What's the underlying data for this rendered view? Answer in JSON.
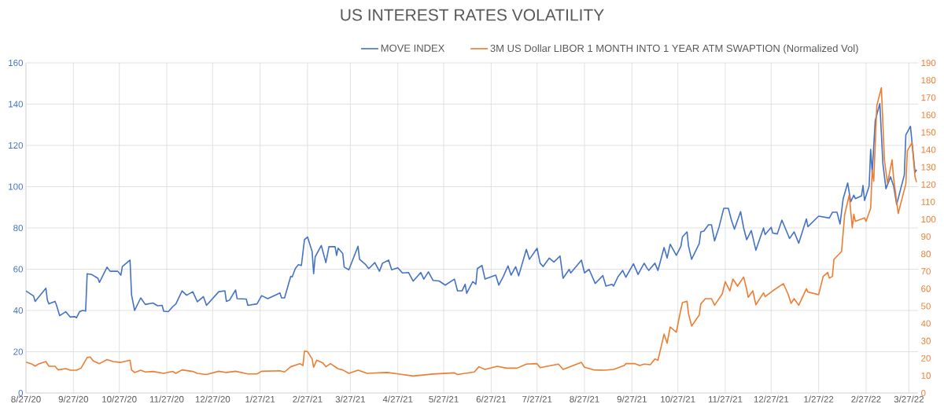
{
  "chart_data": {
    "type": "line",
    "title": "US INTEREST RATES VOLATILITY",
    "xlim": [
      "2020-08-27",
      "2022-04-02"
    ],
    "xticks": [
      {
        "value": "2020-08-27",
        "label": "8/27/20"
      },
      {
        "value": "2020-09-27",
        "label": "9/27/20"
      },
      {
        "value": "2020-10-27",
        "label": "10/27/20"
      },
      {
        "value": "2020-11-27",
        "label": "11/27/20"
      },
      {
        "value": "2020-12-27",
        "label": "12/27/20"
      },
      {
        "value": "2021-01-27",
        "label": "1/27/21"
      },
      {
        "value": "2021-02-27",
        "label": "2/27/21"
      },
      {
        "value": "2021-03-27",
        "label": "3/27/21"
      },
      {
        "value": "2021-04-27",
        "label": "4/27/21"
      },
      {
        "value": "2021-05-27",
        "label": "5/27/21"
      },
      {
        "value": "2021-06-27",
        "label": "6/27/21"
      },
      {
        "value": "2021-07-27",
        "label": "7/27/21"
      },
      {
        "value": "2021-08-27",
        "label": "8/27/21"
      },
      {
        "value": "2021-09-27",
        "label": "9/27/21"
      },
      {
        "value": "2021-10-27",
        "label": "10/27/21"
      },
      {
        "value": "2021-11-27",
        "label": "11/27/21"
      },
      {
        "value": "2021-12-27",
        "label": "12/27/21"
      },
      {
        "value": "2022-01-27",
        "label": "1/27/22"
      },
      {
        "value": "2022-02-27",
        "label": "2/27/22"
      },
      {
        "value": "2022-03-27",
        "label": "3/27/22"
      }
    ],
    "ylim": [
      0,
      160
    ],
    "yticks": [
      0,
      20,
      40,
      60,
      80,
      100,
      120,
      140,
      160
    ],
    "y2lim": [
      0,
      190
    ],
    "y2ticks": [
      0,
      10,
      20,
      30,
      40,
      50,
      60,
      70,
      80,
      90,
      100,
      110,
      120,
      130,
      140,
      150,
      160,
      170,
      180,
      190
    ],
    "grid": true,
    "legend": "top",
    "series": [
      {
        "name": "MOVE INDEX",
        "color": "#4472c4",
        "x": [
          "2020-08-27",
          "2020-09-01",
          "2020-09-02",
          "2020-09-09",
          "2020-09-10",
          "2020-09-11",
          "2020-09-15",
          "2020-09-16",
          "2020-09-18",
          "2020-09-22",
          "2020-09-25",
          "2020-09-28",
          "2020-09-29",
          "2020-10-01",
          "2020-10-03",
          "2020-10-05",
          "2020-10-06",
          "2020-10-09",
          "2020-10-13",
          "2020-10-14",
          "2020-10-19",
          "2020-10-21",
          "2020-10-26",
          "2020-10-28",
          "2020-10-29",
          "2020-11-03",
          "2020-11-04",
          "2020-11-06",
          "2020-11-10",
          "2020-11-13",
          "2020-11-18",
          "2020-11-21",
          "2020-11-24",
          "2020-11-25",
          "2020-11-28",
          "2020-12-01",
          "2020-12-03",
          "2020-12-07",
          "2020-12-10",
          "2020-12-14",
          "2020-12-17",
          "2020-12-21",
          "2020-12-23",
          "2020-12-31",
          "2021-01-04",
          "2021-01-05",
          "2021-01-07",
          "2021-01-11",
          "2021-01-12",
          "2021-01-18",
          "2021-01-19",
          "2021-01-25",
          "2021-01-28",
          "2021-02-01",
          "2021-02-09",
          "2021-02-10",
          "2021-02-12",
          "2021-02-16",
          "2021-02-17",
          "2021-02-19",
          "2021-02-21",
          "2021-02-23",
          "2021-02-25",
          "2021-02-27",
          "2021-03-02",
          "2021-03-03",
          "2021-03-04",
          "2021-03-08",
          "2021-03-11",
          "2021-03-13",
          "2021-03-17",
          "2021-03-18",
          "2021-03-19",
          "2021-03-22",
          "2021-03-23",
          "2021-03-26",
          "2021-04-01",
          "2021-04-02",
          "2021-04-06",
          "2021-04-08",
          "2021-04-12",
          "2021-04-15",
          "2021-04-17",
          "2021-04-21",
          "2021-04-23",
          "2021-04-27",
          "2021-04-30",
          "2021-05-04",
          "2021-05-07",
          "2021-05-12",
          "2021-05-14",
          "2021-05-17",
          "2021-05-20",
          "2021-05-24",
          "2021-05-28",
          "2021-06-03",
          "2021-06-05",
          "2021-06-08",
          "2021-06-10",
          "2021-06-11",
          "2021-06-15",
          "2021-06-17",
          "2021-06-18",
          "2021-06-21",
          "2021-06-23",
          "2021-06-30",
          "2021-07-02",
          "2021-07-05",
          "2021-07-08",
          "2021-07-10",
          "2021-07-13",
          "2021-07-15",
          "2021-07-20",
          "2021-07-22",
          "2021-07-27",
          "2021-07-29",
          "2021-07-31",
          "2021-08-04",
          "2021-08-07",
          "2021-08-11",
          "2021-08-13",
          "2021-08-17",
          "2021-08-18",
          "2021-08-25",
          "2021-08-27",
          "2021-08-30",
          "2021-09-03",
          "2021-09-08",
          "2021-09-10",
          "2021-09-14",
          "2021-09-15",
          "2021-09-18",
          "2021-09-21",
          "2021-09-23",
          "2021-09-28",
          "2021-10-01",
          "2021-10-05",
          "2021-10-07",
          "2021-10-08",
          "2021-10-12",
          "2021-10-14",
          "2021-10-18",
          "2021-10-20",
          "2021-10-22",
          "2021-10-26",
          "2021-10-29",
          "2021-10-30",
          "2021-11-02",
          "2021-11-03",
          "2021-11-05",
          "2021-11-10",
          "2021-11-11",
          "2021-11-13",
          "2021-11-16",
          "2021-11-18",
          "2021-11-20",
          "2021-11-23",
          "2021-11-26",
          "2021-11-29",
          "2021-12-01",
          "2021-12-03",
          "2021-12-07",
          "2021-12-09",
          "2021-12-11",
          "2021-12-14",
          "2021-12-17",
          "2021-12-22",
          "2021-12-23",
          "2021-12-27",
          "2021-12-28",
          "2021-12-31",
          "2022-01-03",
          "2022-01-06",
          "2022-01-08",
          "2022-01-11",
          "2022-01-14",
          "2022-01-19",
          "2022-01-20",
          "2022-01-27",
          "2022-02-03",
          "2022-02-05",
          "2022-02-08",
          "2022-02-10",
          "2022-02-12",
          "2022-02-15",
          "2022-02-17",
          "2022-02-19",
          "2022-02-20",
          "2022-02-24",
          "2022-02-25",
          "2022-02-26",
          "2022-03-01",
          "2022-03-02",
          "2022-03-03",
          "2022-03-05",
          "2022-03-08",
          "2022-03-10",
          "2022-03-12",
          "2022-03-15",
          "2022-03-17",
          "2022-03-19",
          "2022-03-24",
          "2022-03-25",
          "2022-03-28",
          "2022-03-31",
          "2022-04-01"
        ],
        "values": [
          49.5,
          47,
          44.4,
          50.8,
          45,
          43.2,
          44.4,
          42.5,
          37.5,
          39.4,
          36.8,
          37,
          36.4,
          39.4,
          40,
          39.7,
          57.8,
          57.4,
          55.6,
          53.6,
          61,
          59,
          59,
          57.1,
          61.3,
          64.4,
          47.6,
          40,
          46.1,
          42.9,
          43.6,
          42.3,
          42.5,
          39.6,
          39.4,
          41.9,
          43.2,
          49.5,
          47.4,
          49.1,
          44.2,
          46.7,
          42.5,
          49.1,
          49.5,
          44.4,
          45,
          49.9,
          45.7,
          45.5,
          42.5,
          43.2,
          47.2,
          45.7,
          48.5,
          46.1,
          46.1,
          56.5,
          56.3,
          60.3,
          62.2,
          61.8,
          74.3,
          75.6,
          68.6,
          57.8,
          66,
          71.5,
          63.2,
          70.9,
          70.9,
          66.7,
          70.2,
          67.6,
          61,
          59.7,
          71.1,
          64.8,
          62.2,
          60.3,
          63.2,
          59,
          62.9,
          64.4,
          59.7,
          60.7,
          58.2,
          58.4,
          54.2,
          58.4,
          55.2,
          58.7,
          54.6,
          54.3,
          52.3,
          55.2,
          49.5,
          49.5,
          52.7,
          48.3,
          54,
          52.7,
          60.3,
          61.8,
          55.2,
          57.1,
          52.3,
          56.5,
          61.6,
          57.1,
          61.2,
          56.8,
          69.6,
          64.8,
          70.1,
          62.9,
          61.3,
          65.4,
          63.5,
          66.4,
          55.6,
          59.9,
          58.2,
          64.4,
          58.2,
          59.9,
          53.1,
          56.9,
          51.8,
          52.7,
          51.8,
          56.5,
          59.4,
          56.1,
          62.6,
          57.5,
          62.9,
          60.3,
          59.4,
          62.9,
          59.4,
          70.5,
          65.4,
          72.1,
          66.7,
          71.1,
          75.6,
          78.1,
          71.1,
          64.8,
          72.4,
          78.1,
          78.5,
          81.5,
          81.5,
          73.7,
          80.6,
          89.5,
          89.5,
          83.8,
          79.4,
          87.9,
          80,
          74.3,
          78.7,
          69.2,
          80,
          76.8,
          80.3,
          77.5,
          77.1,
          83.8,
          78.5,
          74.9,
          78.1,
          72.6,
          84.4,
          80.6,
          85.7,
          84.8,
          87.6,
          87.6,
          81.9,
          94,
          101.8,
          92.7,
          95.9,
          94.2,
          95.5,
          100.6,
          93.3,
          100.3,
          118.1,
          106.7,
          132.1,
          140.3,
          111.1,
          99,
          104.8,
          100.3,
          91.4,
          105.7,
          125.1,
          129.3,
          106.9,
          108.2
        ]
      },
      {
        "name": "3M US Dollar LIBOR 1 MONTH INTO 1 YEAR ATM SWAPTION (Normalized Vol)",
        "color": "#ed7d31",
        "axis": "y2",
        "x": [
          "2020-08-27",
          "2020-08-31",
          "2020-09-02",
          "2020-09-04",
          "2020-09-09",
          "2020-09-11",
          "2020-09-15",
          "2020-09-17",
          "2020-09-22",
          "2020-09-25",
          "2020-09-29",
          "2020-10-02",
          "2020-10-06",
          "2020-10-08",
          "2020-10-10",
          "2020-10-14",
          "2020-10-19",
          "2020-10-23",
          "2020-10-28",
          "2020-11-03",
          "2020-11-04",
          "2020-11-06",
          "2020-11-10",
          "2020-11-13",
          "2020-11-18",
          "2020-11-25",
          "2020-12-01",
          "2020-12-03",
          "2020-12-07",
          "2020-12-14",
          "2020-12-17",
          "2020-12-23",
          "2020-12-31",
          "2021-01-05",
          "2021-01-11",
          "2021-01-19",
          "2021-01-25",
          "2021-01-28",
          "2021-02-09",
          "2021-02-12",
          "2021-02-16",
          "2021-02-20",
          "2021-02-22",
          "2021-02-24",
          "2021-02-25",
          "2021-02-27",
          "2021-03-02",
          "2021-03-03",
          "2021-03-05",
          "2021-03-09",
          "2021-03-11",
          "2021-03-14",
          "2021-03-19",
          "2021-03-22",
          "2021-03-26",
          "2021-04-01",
          "2021-04-07",
          "2021-04-20",
          "2021-05-07",
          "2021-05-20",
          "2021-06-03",
          "2021-06-05",
          "2021-06-16",
          "2021-06-19",
          "2021-06-23",
          "2021-07-01",
          "2021-07-07",
          "2021-07-14",
          "2021-07-20",
          "2021-07-27",
          "2021-07-29",
          "2021-08-10",
          "2021-08-13",
          "2021-08-25",
          "2021-08-27",
          "2021-09-02",
          "2021-09-09",
          "2021-09-15",
          "2021-09-22",
          "2021-09-23",
          "2021-09-29",
          "2021-10-02",
          "2021-10-05",
          "2021-10-09",
          "2021-10-12",
          "2021-10-14",
          "2021-10-18",
          "2021-10-20",
          "2021-10-22",
          "2021-10-26",
          "2021-10-28",
          "2021-10-30",
          "2021-11-02",
          "2021-11-03",
          "2021-11-05",
          "2021-11-10",
          "2021-11-11",
          "2021-11-14",
          "2021-11-18",
          "2021-11-20",
          "2021-11-25",
          "2021-11-27",
          "2021-11-30",
          "2021-12-02",
          "2021-12-05",
          "2021-12-09",
          "2021-12-11",
          "2021-12-12",
          "2021-12-15",
          "2021-12-17",
          "2021-12-22",
          "2021-12-23",
          "2021-12-28",
          "2022-01-04",
          "2022-01-07",
          "2022-01-09",
          "2022-01-11",
          "2022-01-14",
          "2022-01-19",
          "2022-01-20",
          "2022-01-27",
          "2022-01-30",
          "2022-02-02",
          "2022-02-03",
          "2022-02-05",
          "2022-02-06",
          "2022-02-11",
          "2022-02-13",
          "2022-02-16",
          "2022-02-18",
          "2022-02-19",
          "2022-02-20",
          "2022-02-26",
          "2022-02-27",
          "2022-03-02",
          "2022-03-03",
          "2022-03-04",
          "2022-03-06",
          "2022-03-09",
          "2022-03-11",
          "2022-03-13",
          "2022-03-16",
          "2022-03-17",
          "2022-03-20",
          "2022-03-25",
          "2022-03-26",
          "2022-03-29",
          "2022-03-31",
          "2022-04-01"
        ],
        "values": [
          17.8,
          16.6,
          15.5,
          16.6,
          18.1,
          15.4,
          15.4,
          13.3,
          14,
          13.1,
          13.1,
          14.3,
          20.4,
          20.7,
          18.4,
          16.9,
          19.2,
          18.1,
          17.6,
          18.9,
          13.3,
          11.8,
          13.1,
          12.1,
          12.4,
          11.3,
          12.4,
          11.3,
          13.3,
          12.4,
          11.3,
          10.6,
          12.5,
          11.8,
          12.5,
          11,
          11,
          12.5,
          12.8,
          12.1,
          15.1,
          16.3,
          16.9,
          15.8,
          24.1,
          23.8,
          19.6,
          14.8,
          18.9,
          17.3,
          15.1,
          16.9,
          13.9,
          13.3,
          11.3,
          13.1,
          11.3,
          11.8,
          9.8,
          10.9,
          11.6,
          10.6,
          12.1,
          15.1,
          13.6,
          15.4,
          14.3,
          14.3,
          16.6,
          16.9,
          14.6,
          16.6,
          13.6,
          17.6,
          14.8,
          13.3,
          13.1,
          13.6,
          15.8,
          16.9,
          16.9,
          15.8,
          16.6,
          16.3,
          19.6,
          18.9,
          33.9,
          28.7,
          38,
          35,
          44,
          52,
          52.8,
          45.6,
          38.5,
          44.9,
          51.3,
          54.3,
          54.3,
          50.5,
          57,
          64.1,
          58.8,
          65.6,
          61.5,
          66.8,
          59.6,
          55.1,
          58.8,
          50.8,
          57.6,
          55.5,
          58.8,
          62.9,
          57,
          51.6,
          54.3,
          50.5,
          60,
          58.1,
          56.6,
          67.1,
          69.4,
          66.1,
          67.1,
          76.9,
          81.4,
          102.6,
          113.9,
          95,
          102.9,
          98.8,
          100.8,
          98.8,
          106.3,
          128.2,
          121.9,
          165.2,
          175.7,
          134.2,
          120.7,
          134.2,
          123.7,
          103.3,
          120.4,
          139.5,
          144,
          124.4,
          121.4
        ]
      }
    ]
  }
}
